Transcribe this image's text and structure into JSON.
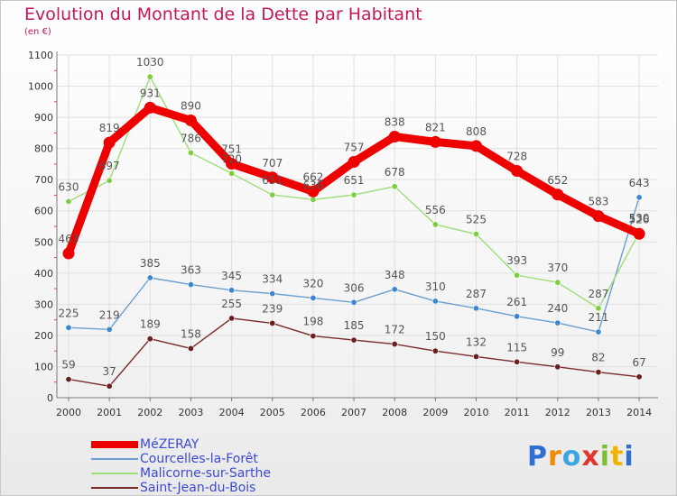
{
  "header": {
    "title": "Evolution du Montant de la Dette par Habitant",
    "subtitle": "(en €)"
  },
  "colors": {
    "title": "#c2185b",
    "axis": "#7a7a7a",
    "grid": "#e0e0e0",
    "legend_text": "#3b49d6",
    "label_text": "#555555"
  },
  "logo": {
    "letters": [
      "P",
      "r",
      "o",
      "x",
      "i",
      "t",
      "i"
    ],
    "colors": [
      "#2f6fd1",
      "#f08a00",
      "#3aa7e0",
      "#e2362c",
      "#7cbf2f",
      "#f0b400",
      "#2f6fd1"
    ]
  },
  "chart_data": {
    "type": "line",
    "title": "Evolution du Montant de la Dette par Habitant",
    "subtitle": "(en €)",
    "x": [
      "2000",
      "2001",
      "2002",
      "2003",
      "2004",
      "2005",
      "2006",
      "2007",
      "2008",
      "2009",
      "2010",
      "2011",
      "2012",
      "2013",
      "2014"
    ],
    "ylim": [
      0,
      1100
    ],
    "yticks": [
      0,
      100,
      200,
      300,
      400,
      500,
      600,
      700,
      800,
      900,
      1000,
      1100
    ],
    "grid": true,
    "legend_position": "bottom-left",
    "series": [
      {
        "name": "MéZERAY",
        "color": "#ee0000",
        "emphasis": true,
        "values": [
          463,
          819,
          931,
          890,
          751,
          707,
          662,
          757,
          838,
          821,
          808,
          728,
          652,
          583,
          526
        ],
        "labels": [
          "463",
          "819",
          "931",
          "890",
          "751",
          "707",
          "662",
          "757",
          "838",
          "821",
          "808",
          "728",
          "652",
          "583",
          "526"
        ]
      },
      {
        "name": "Courcelles-la-Forêt",
        "color": "#6a9fd0",
        "marker": "#3f86d1",
        "values": [
          225,
          219,
          385,
          363,
          345,
          334,
          320,
          306,
          348,
          310,
          287,
          261,
          240,
          211,
          643
        ],
        "labels": [
          "225",
          "219",
          "385",
          "363",
          "345",
          "334",
          "320",
          "306",
          "348",
          "310",
          "287",
          "261",
          "240",
          "211",
          "643"
        ]
      },
      {
        "name": "Malicorne-sur-Sarthe",
        "color": "#9fdc7a",
        "marker": "#7ecf3e",
        "values": [
          630,
          697,
          1030,
          786,
          720,
          651,
          636,
          651,
          678,
          556,
          525,
          393,
          370,
          287,
          530
        ],
        "labels": [
          "630",
          "697",
          "1030",
          "786",
          "720",
          "651",
          "636",
          "651",
          "678",
          "556",
          "525",
          "393",
          "370",
          "287",
          "530"
        ]
      },
      {
        "name": "Saint-Jean-du-Bois",
        "color": "#7a2a2a",
        "marker": "#6b1f1f",
        "values": [
          59,
          37,
          189,
          158,
          255,
          239,
          198,
          185,
          172,
          150,
          132,
          115,
          99,
          82,
          67
        ],
        "labels": [
          "59",
          "37",
          "189",
          "158",
          "255",
          "239",
          "198",
          "185",
          "172",
          "150",
          "132",
          "115",
          "99",
          "82",
          "67"
        ]
      }
    ]
  }
}
